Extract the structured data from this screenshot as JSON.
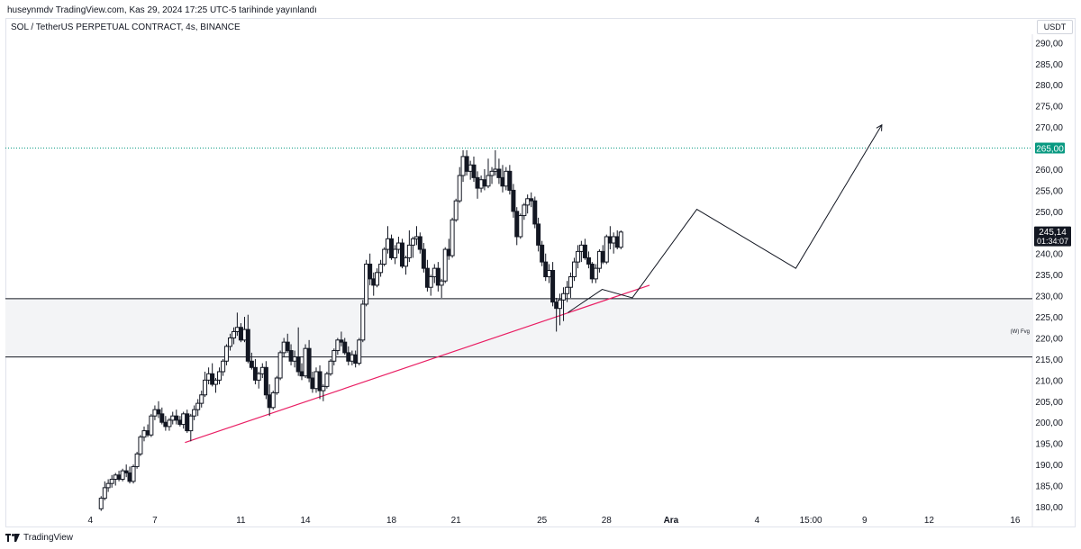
{
  "header": {
    "published": "huseynmdv TradingView.com, Kas 29, 2024 17:25 UTC-5 tarihinde yayınlandı",
    "symbol": "SOL / TetherUS PERPETUAL CONTRACT, 4s, BINANCE",
    "currency": "USDT"
  },
  "footer": {
    "brand": "TradingView"
  },
  "chart_data": {
    "type": "candlestick",
    "symbol": "SOL / TetherUS PERPETUAL CONTRACT",
    "interval": "4s",
    "exchange": "BINANCE",
    "currency": "USDT",
    "ylim": [
      178.5,
      292
    ],
    "y_ticks": [
      "180,00",
      "185,00",
      "190,00",
      "195,00",
      "200,00",
      "205,00",
      "210,00",
      "215,00",
      "220,00",
      "225,00",
      "230,00",
      "235,00",
      "240,00",
      "245,00",
      "250,00",
      "255,00",
      "260,00",
      "265,00",
      "270,00",
      "275,00",
      "280,00",
      "285,00",
      "290,00"
    ],
    "y_tick_values": [
      180,
      185,
      190,
      195,
      200,
      205,
      210,
      215,
      220,
      225,
      230,
      235,
      240,
      245,
      250,
      255,
      260,
      265,
      270,
      275,
      280,
      285,
      290
    ],
    "x_ticks": [
      "4",
      "7",
      "11",
      "14",
      "18",
      "21",
      "25",
      "28",
      "Ara",
      "4",
      "15:00",
      "9",
      "12",
      "16"
    ],
    "x_tick_days": [
      4,
      7,
      11,
      14,
      18,
      21,
      25,
      28,
      31,
      35,
      37.5,
      40,
      43,
      47
    ],
    "day_range": [
      0.05,
      47.8
    ],
    "price_label": {
      "value": 245.14,
      "text": "245,14",
      "countdown": "01:34:07"
    },
    "level_label": {
      "value": 265,
      "text": "265,00",
      "color": "#089981"
    },
    "zone": {
      "top": 229.3,
      "bottom": 215.5,
      "label": "(W) Fvg",
      "fill": "#f3f4f6"
    },
    "trendline": {
      "from": [
        8.4,
        195.2
      ],
      "to": [
        30,
        232.5
      ],
      "color": "#e91e63"
    },
    "projection_path": [
      [
        26.2,
        226
      ],
      [
        27.8,
        231.5
      ],
      [
        29.2,
        229.5
      ],
      [
        32.2,
        250.5
      ],
      [
        36.8,
        236.5
      ],
      [
        40.8,
        270.5
      ]
    ],
    "candles": [
      [
        4.5,
        179.5,
        182.5,
        179.0,
        182.0
      ],
      [
        4.67,
        182.0,
        186.0,
        181.5,
        184.5
      ],
      [
        4.83,
        184.5,
        186.5,
        183.5,
        185.5
      ],
      [
        5.0,
        185.5,
        187.5,
        184.5,
        186.5
      ],
      [
        5.17,
        186.5,
        188.0,
        185.0,
        187.5
      ],
      [
        5.33,
        187.5,
        188.5,
        186.0,
        186.5
      ],
      [
        5.5,
        186.5,
        189.0,
        186.0,
        188.5
      ],
      [
        5.67,
        188.5,
        190.0,
        187.0,
        188.0
      ],
      [
        5.83,
        188.0,
        189.5,
        185.5,
        186.0
      ],
      [
        6.0,
        186.0,
        190.0,
        185.5,
        189.5
      ],
      [
        6.17,
        189.5,
        193.0,
        189.0,
        192.5
      ],
      [
        6.33,
        192.5,
        197.0,
        192.0,
        196.5
      ],
      [
        6.5,
        196.5,
        199.0,
        195.5,
        198.0
      ],
      [
        6.67,
        198.0,
        199.5,
        196.5,
        197.0
      ],
      [
        6.83,
        197.0,
        202.0,
        196.5,
        201.5
      ],
      [
        7.0,
        201.5,
        204.0,
        200.5,
        203.0
      ],
      [
        7.17,
        203.0,
        205.0,
        201.0,
        202.0
      ],
      [
        7.33,
        202.0,
        203.5,
        199.5,
        200.0
      ],
      [
        7.5,
        200.0,
        201.5,
        198.0,
        199.0
      ],
      [
        7.67,
        199.0,
        201.0,
        198.0,
        200.5
      ],
      [
        7.83,
        200.5,
        202.5,
        199.5,
        201.5
      ],
      [
        8.0,
        201.5,
        203.0,
        199.5,
        200.5
      ],
      [
        8.17,
        200.5,
        201.5,
        199.0,
        199.5
      ],
      [
        8.33,
        199.5,
        202.5,
        198.5,
        202.0
      ],
      [
        8.5,
        202.0,
        203.0,
        197.5,
        198.0
      ],
      [
        8.67,
        198.0,
        202.0,
        195.5,
        201.5
      ],
      [
        8.83,
        201.5,
        204.0,
        200.5,
        203.0
      ],
      [
        9.0,
        203.0,
        205.5,
        201.5,
        204.5
      ],
      [
        9.17,
        204.5,
        207.5,
        203.5,
        206.5
      ],
      [
        9.33,
        206.5,
        212.0,
        206.0,
        210.0
      ],
      [
        9.5,
        210.0,
        213.0,
        209.0,
        211.5
      ],
      [
        9.67,
        211.5,
        214.0,
        208.5,
        209.0
      ],
      [
        9.83,
        209.0,
        210.5,
        207.0,
        210.0
      ],
      [
        10.0,
        210.0,
        213.0,
        209.0,
        212.0
      ],
      [
        10.17,
        212.0,
        215.0,
        211.0,
        214.5
      ],
      [
        10.33,
        214.5,
        218.5,
        213.5,
        218.0
      ],
      [
        10.5,
        218.0,
        221.0,
        217.0,
        220.0
      ],
      [
        10.67,
        220.0,
        222.5,
        218.5,
        221.5
      ],
      [
        10.83,
        221.5,
        226.0,
        220.5,
        222.5
      ],
      [
        11.0,
        222.5,
        223.5,
        219.0,
        219.5
      ],
      [
        11.17,
        219.5,
        225.0,
        219.0,
        222.0
      ],
      [
        11.33,
        222.0,
        225.5,
        214.0,
        214.5
      ],
      [
        11.5,
        214.5,
        216.5,
        212.5,
        213.0
      ],
      [
        11.67,
        213.0,
        215.0,
        209.0,
        210.0
      ],
      [
        11.83,
        210.0,
        212.0,
        208.0,
        211.5
      ],
      [
        12.0,
        211.5,
        214.0,
        210.5,
        213.0
      ],
      [
        12.17,
        213.0,
        214.5,
        205.5,
        206.5
      ],
      [
        12.33,
        206.5,
        209.0,
        201.5,
        203.5
      ],
      [
        12.5,
        203.5,
        207.5,
        203.0,
        207.0
      ],
      [
        12.67,
        207.0,
        211.0,
        206.5,
        210.5
      ],
      [
        12.83,
        210.5,
        217.0,
        210.0,
        216.5
      ],
      [
        13.0,
        216.5,
        220.0,
        215.5,
        219.0
      ],
      [
        13.17,
        219.0,
        221.0,
        216.5,
        217.0
      ],
      [
        13.33,
        217.0,
        218.5,
        213.5,
        214.5
      ],
      [
        13.5,
        214.5,
        217.0,
        213.0,
        215.5
      ],
      [
        13.67,
        215.5,
        222.5,
        211.0,
        212.0
      ],
      [
        13.83,
        212.0,
        214.0,
        210.0,
        211.0
      ],
      [
        14.0,
        211.0,
        218.5,
        210.5,
        217.5
      ],
      [
        14.17,
        217.5,
        219.5,
        209.5,
        210.5
      ],
      [
        14.33,
        210.5,
        212.0,
        207.0,
        208.0
      ],
      [
        14.5,
        208.0,
        213.0,
        207.0,
        212.0
      ],
      [
        14.67,
        212.0,
        213.5,
        205.5,
        207.5
      ],
      [
        14.83,
        207.5,
        209.0,
        205.0,
        208.5
      ],
      [
        15.0,
        208.5,
        212.0,
        208.0,
        211.5
      ],
      [
        15.17,
        211.5,
        215.0,
        211.0,
        214.5
      ],
      [
        15.33,
        214.5,
        217.5,
        213.5,
        217.0
      ],
      [
        15.5,
        217.0,
        220.0,
        216.0,
        219.5
      ],
      [
        15.67,
        219.5,
        221.5,
        218.0,
        219.0
      ],
      [
        15.83,
        219.0,
        220.0,
        216.0,
        216.5
      ],
      [
        16.0,
        216.5,
        218.0,
        213.5,
        214.5
      ],
      [
        16.17,
        214.5,
        217.0,
        213.5,
        216.0
      ],
      [
        16.33,
        216.0,
        217.0,
        213.0,
        214.0
      ],
      [
        16.5,
        214.0,
        220.0,
        213.5,
        219.5
      ],
      [
        16.67,
        219.5,
        229.0,
        219.0,
        228.0
      ],
      [
        16.83,
        228.0,
        238.5,
        227.5,
        237.5
      ],
      [
        17.0,
        237.5,
        240.0,
        232.5,
        234.0
      ],
      [
        17.17,
        234.0,
        235.5,
        230.0,
        232.5
      ],
      [
        17.33,
        232.5,
        236.5,
        232.0,
        235.5
      ],
      [
        17.5,
        235.5,
        238.5,
        234.5,
        237.5
      ],
      [
        17.67,
        237.5,
        241.5,
        237.0,
        241.0
      ],
      [
        17.83,
        241.0,
        246.5,
        240.0,
        243.5
      ],
      [
        18.0,
        243.5,
        244.5,
        238.5,
        239.0
      ],
      [
        18.17,
        239.0,
        242.0,
        237.5,
        241.0
      ],
      [
        18.33,
        241.0,
        244.0,
        240.0,
        242.5
      ],
      [
        18.5,
        242.5,
        243.5,
        236.5,
        237.0
      ],
      [
        18.67,
        237.0,
        239.5,
        235.0,
        239.0
      ],
      [
        18.83,
        239.0,
        245.5,
        238.0,
        242.0
      ],
      [
        19.0,
        242.0,
        244.0,
        239.0,
        243.5
      ],
      [
        19.17,
        243.5,
        246.5,
        242.0,
        244.0
      ],
      [
        19.33,
        244.0,
        245.0,
        240.0,
        241.0
      ],
      [
        19.5,
        241.0,
        242.5,
        235.5,
        236.5
      ],
      [
        19.67,
        236.5,
        238.5,
        231.0,
        232.0
      ],
      [
        19.83,
        232.0,
        235.0,
        230.0,
        234.5
      ],
      [
        20.0,
        234.5,
        237.5,
        233.0,
        236.5
      ],
      [
        20.17,
        236.5,
        238.0,
        231.0,
        232.5
      ],
      [
        20.33,
        232.5,
        234.0,
        229.5,
        233.5
      ],
      [
        20.5,
        233.5,
        241.5,
        233.0,
        241.0
      ],
      [
        20.67,
        241.0,
        243.5,
        238.5,
        239.5
      ],
      [
        20.83,
        239.5,
        248.5,
        239.0,
        248.0
      ],
      [
        21.0,
        248.0,
        253.0,
        247.5,
        252.5
      ],
      [
        21.17,
        252.5,
        260.5,
        252.0,
        258.5
      ],
      [
        21.33,
        258.5,
        264.5,
        257.0,
        263.0
      ],
      [
        21.5,
        263.0,
        264.5,
        258.5,
        259.5
      ],
      [
        21.67,
        259.5,
        262.0,
        257.5,
        261.0
      ],
      [
        21.83,
        261.0,
        263.0,
        257.0,
        258.0
      ],
      [
        22.0,
        258.0,
        259.5,
        253.0,
        255.5
      ],
      [
        22.17,
        255.5,
        258.5,
        254.5,
        257.5
      ],
      [
        22.33,
        257.5,
        260.0,
        255.0,
        256.0
      ],
      [
        22.5,
        256.0,
        262.5,
        255.5,
        258.5
      ],
      [
        22.67,
        258.5,
        260.5,
        256.5,
        259.5
      ],
      [
        22.83,
        259.5,
        264.5,
        258.5,
        260.0
      ],
      [
        23.0,
        260.0,
        262.5,
        256.5,
        258.0
      ],
      [
        23.17,
        258.0,
        261.0,
        254.5,
        256.0
      ],
      [
        23.33,
        256.0,
        260.5,
        255.0,
        259.5
      ],
      [
        23.5,
        259.5,
        261.0,
        254.0,
        255.0
      ],
      [
        23.67,
        255.0,
        256.5,
        248.5,
        250.0
      ],
      [
        23.83,
        250.0,
        251.0,
        242.0,
        244.0
      ],
      [
        24.0,
        244.0,
        249.5,
        243.5,
        249.0
      ],
      [
        24.17,
        249.0,
        252.0,
        248.0,
        251.5
      ],
      [
        24.33,
        251.5,
        254.0,
        249.5,
        253.0
      ],
      [
        24.5,
        253.0,
        254.5,
        251.0,
        252.5
      ],
      [
        24.67,
        252.5,
        253.5,
        246.0,
        247.0
      ],
      [
        24.83,
        247.0,
        248.5,
        240.5,
        242.0
      ],
      [
        25.0,
        242.0,
        243.0,
        237.0,
        238.0
      ],
      [
        25.17,
        238.0,
        240.0,
        233.5,
        234.5
      ],
      [
        25.33,
        234.5,
        237.5,
        233.0,
        236.0
      ],
      [
        25.5,
        236.0,
        238.0,
        227.5,
        228.5
      ],
      [
        25.67,
        228.5,
        229.5,
        221.5,
        227.0
      ],
      [
        25.83,
        227.0,
        230.5,
        223.0,
        229.0
      ],
      [
        26.0,
        229.0,
        232.0,
        224.0,
        230.5
      ],
      [
        26.17,
        230.5,
        233.5,
        228.5,
        232.0
      ],
      [
        26.33,
        232.0,
        235.5,
        229.5,
        234.5
      ],
      [
        26.5,
        234.5,
        239.0,
        233.5,
        238.0
      ],
      [
        26.67,
        238.0,
        242.0,
        236.5,
        240.5
      ],
      [
        26.83,
        240.5,
        243.0,
        238.0,
        242.0
      ],
      [
        27.0,
        242.0,
        243.5,
        238.5,
        239.0
      ],
      [
        27.17,
        239.0,
        240.5,
        236.5,
        237.5
      ],
      [
        27.33,
        237.5,
        238.0,
        233.0,
        234.0
      ],
      [
        27.5,
        234.0,
        237.5,
        233.0,
        236.5
      ],
      [
        27.67,
        236.5,
        241.0,
        235.5,
        240.5
      ],
      [
        27.83,
        240.5,
        242.0,
        237.5,
        238.0
      ],
      [
        28.0,
        238.0,
        244.5,
        237.5,
        244.0
      ],
      [
        28.17,
        244.0,
        246.5,
        241.0,
        242.5
      ],
      [
        28.33,
        242.5,
        245.0,
        240.0,
        244.0
      ],
      [
        28.5,
        244.0,
        245.5,
        241.0,
        241.5
      ],
      [
        28.67,
        241.5,
        245.5,
        241.0,
        245.1
      ]
    ]
  }
}
